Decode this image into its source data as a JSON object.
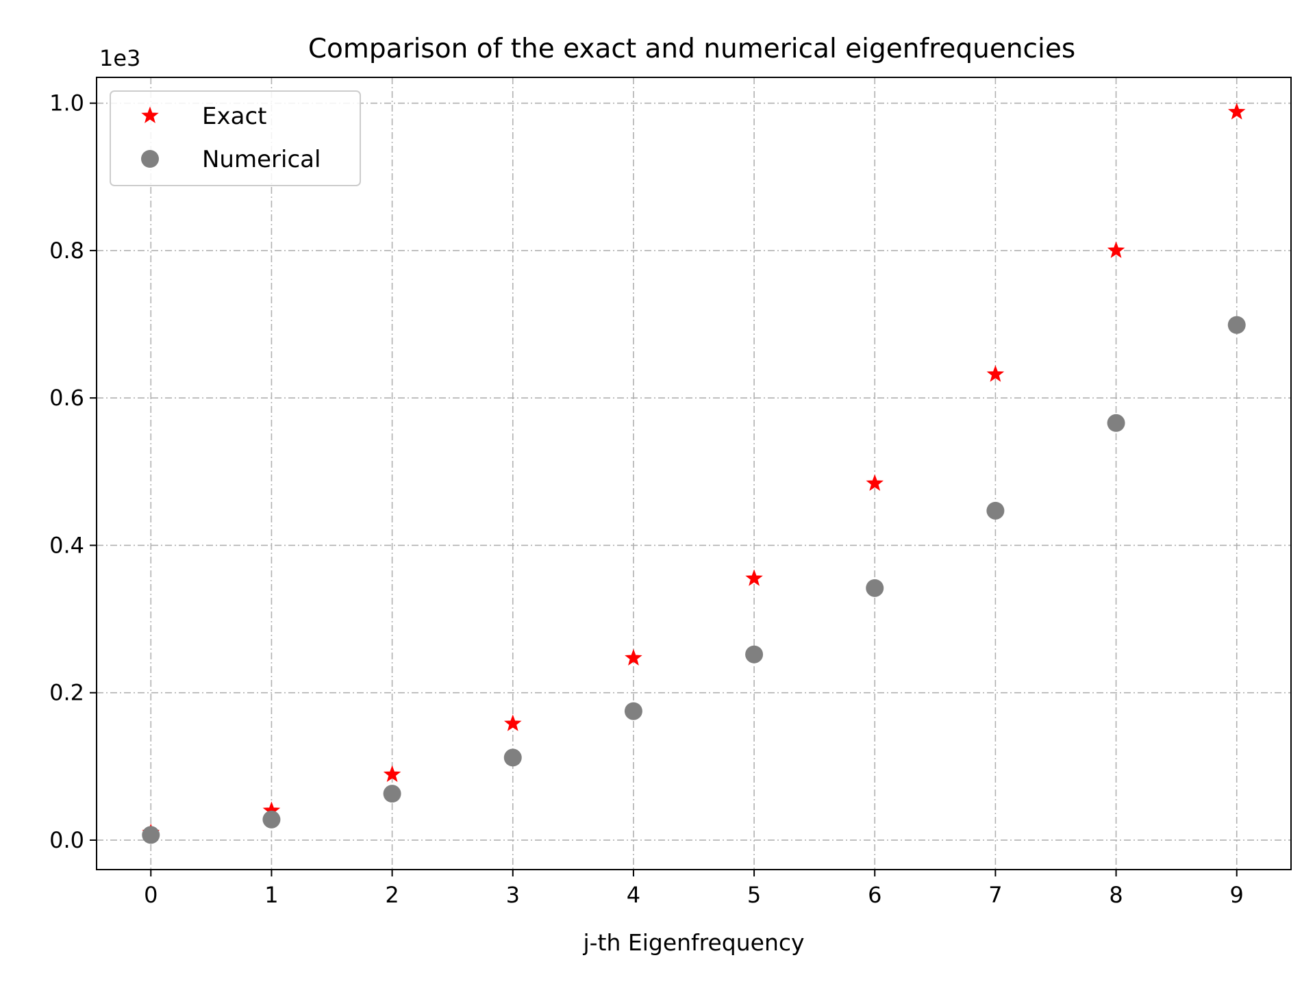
{
  "chart_data": {
    "type": "scatter",
    "title": "Comparison of the exact and numerical eigenfrequencies",
    "xlabel": "j-th Eigenfrequency",
    "ylabel": "",
    "y_offset_label": "1e3",
    "xlim": [
      -0.45,
      9.45
    ],
    "ylim": [
      -0.04,
      1.035
    ],
    "xticks": [
      0,
      1,
      2,
      3,
      4,
      5,
      6,
      7,
      8,
      9
    ],
    "xtick_labels": [
      "0",
      "1",
      "2",
      "3",
      "4",
      "5",
      "6",
      "7",
      "8",
      "9"
    ],
    "yticks": [
      0.0,
      0.2,
      0.4,
      0.6,
      0.8,
      1.0
    ],
    "ytick_labels": [
      "0.0",
      "0.2",
      "0.4",
      "0.6",
      "0.8",
      "1.0"
    ],
    "grid": true,
    "legend_position": "top-left",
    "series": [
      {
        "name": "Exact",
        "marker": "star",
        "color": "#ff0000",
        "x": [
          0,
          1,
          2,
          3,
          4,
          5,
          6,
          7,
          8,
          9
        ],
        "y": [
          0.01,
          0.04,
          0.089,
          0.158,
          0.247,
          0.355,
          0.484,
          0.632,
          0.8,
          0.988
        ]
      },
      {
        "name": "Numerical",
        "marker": "circle",
        "color": "#808080",
        "x": [
          0,
          1,
          2,
          3,
          4,
          5,
          6,
          7,
          8,
          9
        ],
        "y": [
          0.007,
          0.028,
          0.063,
          0.112,
          0.175,
          0.252,
          0.342,
          0.447,
          0.566,
          0.699
        ]
      }
    ]
  }
}
